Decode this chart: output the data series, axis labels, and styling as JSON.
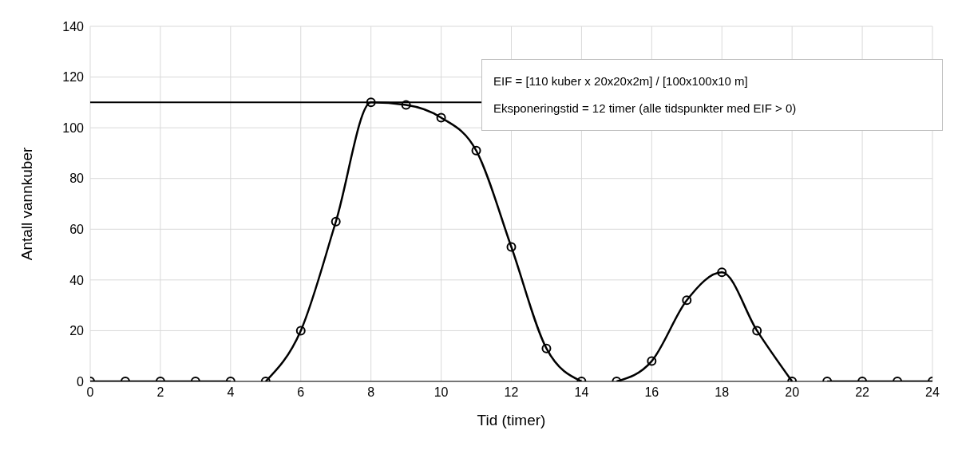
{
  "chart_data": {
    "type": "line",
    "xlabel": "Tid (timer)",
    "ylabel": "Antall vannkuber",
    "xlim": [
      0,
      24
    ],
    "xticks": [
      0,
      2,
      4,
      6,
      8,
      10,
      12,
      14,
      16,
      18,
      20,
      22,
      24
    ],
    "ylim": [
      0,
      140
    ],
    "yticks": [
      0,
      20,
      40,
      60,
      80,
      100,
      120,
      140
    ],
    "grid": true,
    "marker": "circle",
    "line_style": "solid",
    "series": [
      {
        "color": "#000000",
        "x": [
          0,
          1,
          2,
          3,
          4
        ],
        "values": [
          0,
          0,
          0,
          0,
          0
        ]
      },
      {
        "color": "#000000",
        "x": [
          5,
          6,
          7,
          8,
          9,
          10,
          11,
          12,
          13,
          14
        ],
        "values": [
          0,
          20,
          63,
          110,
          109,
          104,
          91,
          53,
          13,
          0
        ]
      },
      {
        "color": "#000000",
        "x": [
          15,
          16,
          17,
          18,
          19,
          20
        ],
        "values": [
          0,
          8,
          32,
          43,
          20,
          0
        ]
      },
      {
        "color": "#000000",
        "x": [
          21,
          22,
          23,
          24
        ],
        "values": [
          0,
          0,
          0,
          0
        ]
      }
    ],
    "ref_lines": [
      {
        "axis": "y",
        "value": 110,
        "color": "#000000"
      }
    ],
    "annotations": [
      "EIF = [110 kuber x 20x20x2m] / [100x100x10 m]",
      "Eksponeringstid = 12 timer (alle tidspunkter med EIF > 0)"
    ]
  }
}
